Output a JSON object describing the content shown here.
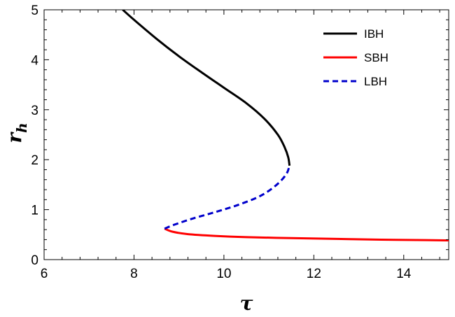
{
  "chart_data": {
    "type": "line",
    "title": "",
    "xlabel": "τ",
    "ylabel_main": "r",
    "ylabel_sub": "h",
    "xlim": [
      6,
      15
    ],
    "ylim": [
      0,
      5
    ],
    "xticks": [
      6,
      8,
      10,
      12,
      14
    ],
    "yticks": [
      0,
      1,
      2,
      3,
      4,
      5
    ],
    "grid": false,
    "legend_position": "top-right",
    "series": [
      {
        "name": "IBH",
        "color": "#000000",
        "dash": "solid",
        "points": [
          [
            7.75,
            5.0
          ],
          [
            8.0,
            4.8
          ],
          [
            8.5,
            4.42
          ],
          [
            9.0,
            4.07
          ],
          [
            9.5,
            3.75
          ],
          [
            10.0,
            3.44
          ],
          [
            10.5,
            3.13
          ],
          [
            10.9,
            2.82
          ],
          [
            11.2,
            2.5
          ],
          [
            11.35,
            2.25
          ],
          [
            11.43,
            2.05
          ],
          [
            11.46,
            1.88
          ]
        ]
      },
      {
        "name": "SBH",
        "color": "#ff0000",
        "dash": "solid",
        "points": [
          [
            8.68,
            0.62
          ],
          [
            8.85,
            0.56
          ],
          [
            9.2,
            0.51
          ],
          [
            9.8,
            0.475
          ],
          [
            10.5,
            0.45
          ],
          [
            11.5,
            0.43
          ],
          [
            12.5,
            0.415
          ],
          [
            13.5,
            0.4
          ],
          [
            14.5,
            0.39
          ],
          [
            15.0,
            0.385
          ]
        ]
      },
      {
        "name": "LBH",
        "color": "#0000cc",
        "dash": "dashed",
        "points": [
          [
            8.68,
            0.62
          ],
          [
            8.9,
            0.7
          ],
          [
            9.3,
            0.82
          ],
          [
            9.8,
            0.95
          ],
          [
            10.3,
            1.09
          ],
          [
            10.8,
            1.27
          ],
          [
            11.15,
            1.48
          ],
          [
            11.38,
            1.7
          ],
          [
            11.46,
            1.88
          ]
        ]
      }
    ]
  }
}
